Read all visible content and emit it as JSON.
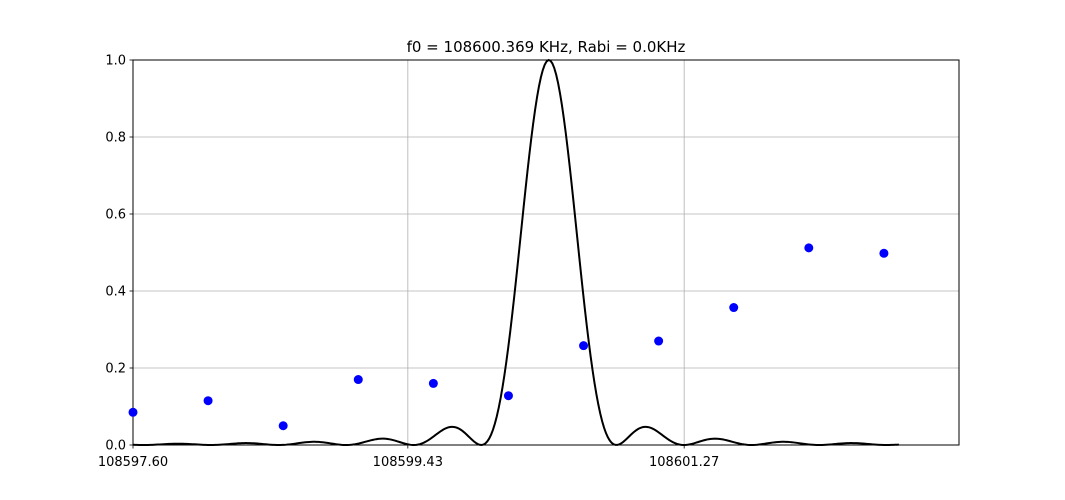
{
  "chart_data": {
    "type": "scatter",
    "title": "f0 = 108600.369 KHz, Rabi = 0.0KHz",
    "xlabel": "",
    "ylabel": "",
    "xlim": [
      108597.6,
      108603.1
    ],
    "ylim": [
      0,
      1.0
    ],
    "grid": true,
    "x_ticks": [
      {
        "value": 108597.6,
        "label": "108597.60"
      },
      {
        "value": 108599.43,
        "label": "108599.43"
      },
      {
        "value": 108601.27,
        "label": "108601.27"
      }
    ],
    "y_ticks": [
      {
        "value": 0.0,
        "label": "0.0"
      },
      {
        "value": 0.2,
        "label": "0.2"
      },
      {
        "value": 0.4,
        "label": "0.4"
      },
      {
        "value": 0.6,
        "label": "0.6"
      },
      {
        "value": 0.8,
        "label": "0.8"
      },
      {
        "value": 1.0,
        "label": "1.0"
      }
    ],
    "series": [
      {
        "kind": "scatter",
        "color": "#0000ff",
        "x": [
          108597.6,
          108598.1,
          108598.6,
          108599.1,
          108599.6,
          108600.1,
          108600.6,
          108601.1,
          108601.6,
          108602.1,
          108602.6
        ],
        "y": [
          0.085,
          0.115,
          0.05,
          0.17,
          0.16,
          0.128,
          0.258,
          0.27,
          0.357,
          0.512,
          0.498
        ]
      },
      {
        "kind": "line",
        "color": "#000000",
        "curve": "sinc-squared",
        "center": 108600.369,
        "first_zero_offset": 0.45,
        "x_range": [
          108597.6,
          108602.7
        ]
      }
    ]
  }
}
